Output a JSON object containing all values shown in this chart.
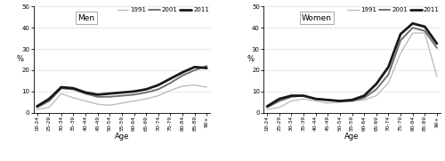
{
  "age_labels": [
    "18-24",
    "25-29",
    "30-34",
    "35-39",
    "40-44",
    "45-49",
    "50-54",
    "55-59",
    "60-64",
    "65-69",
    "70-74",
    "75-79",
    "80-84",
    "85-89",
    "90+"
  ],
  "men": {
    "1991": [
      1.5,
      2.5,
      9.0,
      7.0,
      5.5,
      4.0,
      3.5,
      4.5,
      5.5,
      6.5,
      8.0,
      10.5,
      12.5,
      13.0,
      12.0
    ],
    "2001": [
      2.5,
      5.5,
      11.5,
      11.0,
      9.0,
      7.5,
      7.5,
      8.0,
      8.5,
      9.5,
      11.0,
      14.0,
      17.5,
      20.0,
      22.0
    ],
    "2011": [
      3.0,
      6.5,
      12.0,
      11.5,
      9.5,
      8.5,
      9.0,
      9.5,
      10.0,
      11.0,
      13.0,
      16.0,
      19.0,
      21.5,
      21.0
    ]
  },
  "women": {
    "1991": [
      1.5,
      2.5,
      5.5,
      6.5,
      5.5,
      4.5,
      5.0,
      5.5,
      6.0,
      8.0,
      14.0,
      28.0,
      37.5,
      37.5,
      17.0
    ],
    "2001": [
      2.5,
      5.5,
      7.5,
      8.0,
      6.5,
      6.0,
      5.5,
      5.5,
      7.0,
      11.0,
      18.0,
      34.0,
      40.0,
      38.5,
      30.5
    ],
    "2011": [
      3.0,
      6.5,
      8.0,
      8.0,
      6.5,
      6.0,
      5.5,
      6.0,
      8.0,
      13.5,
      21.5,
      37.0,
      42.0,
      40.5,
      32.5
    ]
  },
  "color_1991": "#b8b8b8",
  "color_2001": "#707070",
  "color_2011": "#181818",
  "lw_1991": 0.9,
  "lw_2001": 1.4,
  "lw_2011": 2.0,
  "ylim": [
    0,
    50
  ],
  "yticks": [
    0,
    10,
    20,
    30,
    40,
    50
  ],
  "ylabel": "%",
  "xlabel": "Age",
  "title_men": "Men",
  "title_women": "Women"
}
